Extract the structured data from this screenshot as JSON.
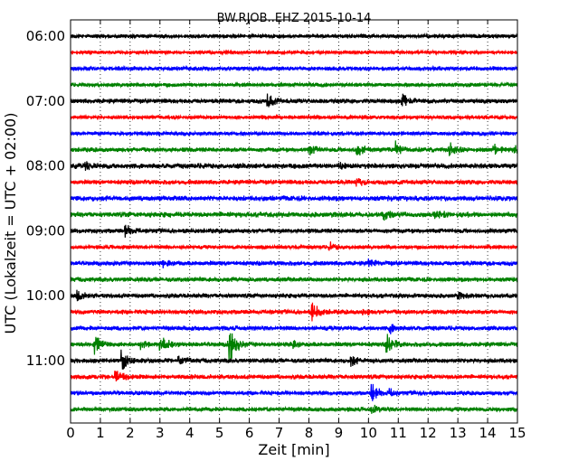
{
  "chart_data": {
    "type": "line",
    "title": "BW.RJOB..EHZ 2015-10-14",
    "xlabel": "Zeit  [min]",
    "ylabel": "UTC (Lokalzeit = UTC + 02:00)",
    "xlim": [
      0,
      15
    ],
    "x_ticks": [
      "0",
      "1",
      "2",
      "3",
      "4",
      "5",
      "6",
      "7",
      "8",
      "9",
      "10",
      "11",
      "12",
      "13",
      "14",
      "15"
    ],
    "y_ticks": [
      "06:00",
      "07:00",
      "08:00",
      "09:00",
      "10:00",
      "11:00"
    ],
    "grid": "vertical-dotted",
    "trace_interval_min": 15,
    "color_cycle": [
      "#000000",
      "#ff0000",
      "#0000ff",
      "#008000"
    ],
    "traces": [
      {
        "start": "06:00",
        "amp": 2.5,
        "events": []
      },
      {
        "start": "06:15",
        "amp": 2.2,
        "events": []
      },
      {
        "start": "06:30",
        "amp": 2.8,
        "events": []
      },
      {
        "start": "06:45",
        "amp": 2.6,
        "events": []
      },
      {
        "start": "07:00",
        "amp": 3.0,
        "events": [
          {
            "t": 6.6,
            "a": 8
          },
          {
            "t": 11.1,
            "a": 9
          }
        ]
      },
      {
        "start": "07:15",
        "amp": 2.5,
        "events": []
      },
      {
        "start": "07:30",
        "amp": 2.5,
        "events": []
      },
      {
        "start": "07:45",
        "amp": 3.0,
        "events": [
          {
            "t": 8.0,
            "a": 6
          },
          {
            "t": 9.6,
            "a": 7
          },
          {
            "t": 10.9,
            "a": 8
          },
          {
            "t": 12.7,
            "a": 8
          },
          {
            "t": 14.2,
            "a": 7
          },
          {
            "t": 14.9,
            "a": 6
          }
        ]
      },
      {
        "start": "08:00",
        "amp": 3.5,
        "events": [
          {
            "t": 0.5,
            "a": 4
          },
          {
            "t": 9.0,
            "a": 3
          }
        ]
      },
      {
        "start": "08:15",
        "amp": 3.0,
        "events": [
          {
            "t": 9.6,
            "a": 4
          }
        ]
      },
      {
        "start": "08:30",
        "amp": 3.5,
        "events": []
      },
      {
        "start": "08:45",
        "amp": 3.5,
        "events": [
          {
            "t": 10.5,
            "a": 5
          },
          {
            "t": 12.2,
            "a": 5
          }
        ]
      },
      {
        "start": "09:00",
        "amp": 3.0,
        "events": [
          {
            "t": 1.8,
            "a": 8
          }
        ]
      },
      {
        "start": "09:15",
        "amp": 2.5,
        "events": [
          {
            "t": 8.7,
            "a": 5
          }
        ]
      },
      {
        "start": "09:30",
        "amp": 3.0,
        "events": [
          {
            "t": 3.1,
            "a": 4
          },
          {
            "t": 10.0,
            "a": 4
          }
        ]
      },
      {
        "start": "09:45",
        "amp": 3.0,
        "events": []
      },
      {
        "start": "10:00",
        "amp": 3.0,
        "events": [
          {
            "t": 0.2,
            "a": 5
          },
          {
            "t": 13.0,
            "a": 3
          }
        ]
      },
      {
        "start": "10:15",
        "amp": 3.0,
        "events": [
          {
            "t": 8.1,
            "a": 11
          },
          {
            "t": 9.8,
            "a": 4
          }
        ]
      },
      {
        "start": "10:30",
        "amp": 3.0,
        "events": [
          {
            "t": 10.7,
            "a": 5
          }
        ]
      },
      {
        "start": "10:45",
        "amp": 3.0,
        "events": [
          {
            "t": 0.8,
            "a": 10
          },
          {
            "t": 2.3,
            "a": 6
          },
          {
            "t": 3.0,
            "a": 12
          },
          {
            "t": 5.3,
            "a": 28
          },
          {
            "t": 7.4,
            "a": 5
          },
          {
            "t": 10.6,
            "a": 12
          }
        ]
      },
      {
        "start": "11:00",
        "amp": 3.0,
        "events": [
          {
            "t": 1.7,
            "a": 14
          },
          {
            "t": 3.6,
            "a": 4
          },
          {
            "t": 9.4,
            "a": 6
          }
        ]
      },
      {
        "start": "11:15",
        "amp": 3.0,
        "events": [
          {
            "t": 1.5,
            "a": 10
          }
        ]
      },
      {
        "start": "11:30",
        "amp": 2.8,
        "events": [
          {
            "t": 10.1,
            "a": 12
          },
          {
            "t": 10.7,
            "a": 4
          }
        ]
      },
      {
        "start": "11:45",
        "amp": 2.8,
        "events": [
          {
            "t": 10.1,
            "a": 5
          }
        ]
      }
    ]
  }
}
